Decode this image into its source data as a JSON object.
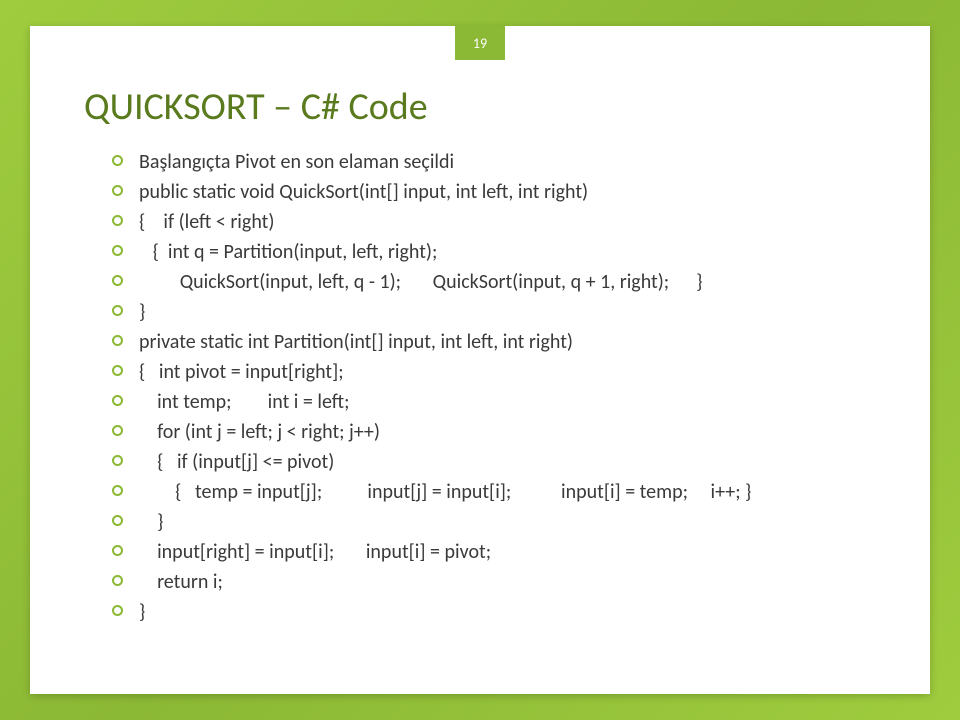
{
  "page_number": "19",
  "title": "QUICKSORT – C# Code",
  "lines": [
    "Başlangıçta Pivot en son elaman seçildi",
    "public static void QuickSort(int[] input, int left, int right)",
    "{    if (left < right)",
    "   {  int q = Partition(input, left, right);",
    "         QuickSort(input, left, q - 1);       QuickSort(input, q + 1, right);      }",
    "}",
    "private static int Partition(int[] input, int left, int right)",
    "{   int pivot = input[right];",
    "    int temp;        int i = left;",
    "    for (int j = left; j < right; j++)",
    "    {   if (input[j] <= pivot)",
    "        {   temp = input[j];          input[j] = input[i];           input[i] = temp;     i++; }",
    "    }",
    "    input[right] = input[i];       input[i] = pivot;",
    "    return i;",
    "}"
  ],
  "style": {
    "background_gradient": [
      "#9fcc3e",
      "#8bb835",
      "#9fcc3e"
    ],
    "slide_bg": "#ffffff",
    "badge_bg": "#8bb835",
    "badge_color": "#ffffff",
    "title_color": "#5a7a1e",
    "title_fontsize": 38,
    "bullet_border_color": "#8bb835",
    "text_color": "#3a3a3a",
    "text_fontsize": 20
  }
}
